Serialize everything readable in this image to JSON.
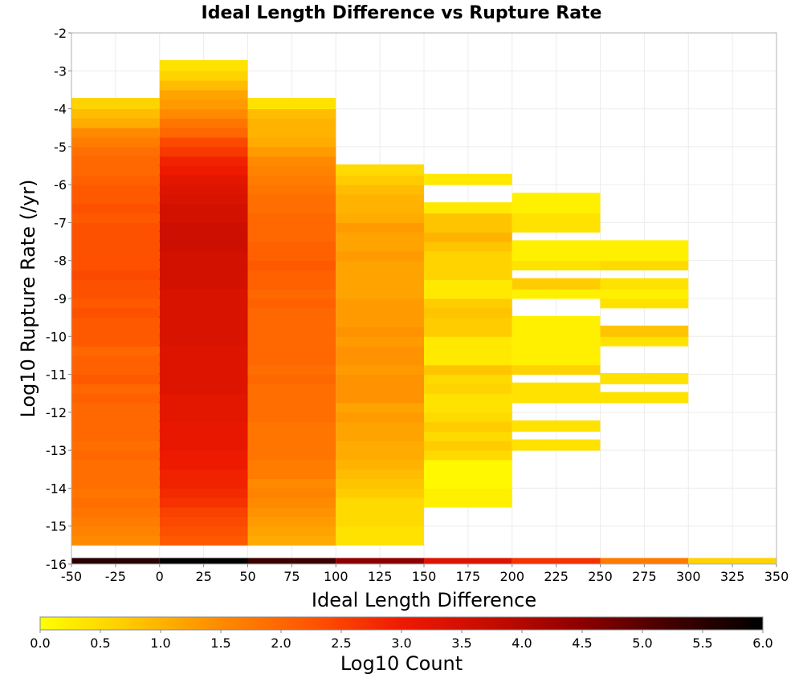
{
  "chart_data": {
    "type": "heatmap",
    "title": "Ideal Length Difference vs Rupture Rate",
    "xlabel": "Ideal Length Difference",
    "ylabel": "Log10 Rupture Rate (/yr)",
    "xlim": [
      -50,
      350
    ],
    "ylim": [
      -16,
      -2
    ],
    "xticks": [
      "-50",
      "-25",
      "0",
      "25",
      "50",
      "75",
      "100",
      "125",
      "150",
      "175",
      "200",
      "225",
      "250",
      "275",
      "300",
      "325",
      "350"
    ],
    "yticks": [
      "-2",
      "-3",
      "-4",
      "-5",
      "-6",
      "-7",
      "-8",
      "-9",
      "-10",
      "-11",
      "-12",
      "-13",
      "-14",
      "-15",
      "-16"
    ],
    "grid": true,
    "bin_width_x": 50,
    "bin_height_y": 0.285,
    "colorbar": {
      "label": "Log10 Count",
      "range": [
        0,
        6
      ],
      "ticks": [
        "0.0",
        "0.5",
        "1.0",
        "1.5",
        "2.0",
        "2.5",
        "3.0",
        "3.5",
        "4.0",
        "4.5",
        "5.0",
        "5.5",
        "6.0"
      ],
      "colormap": [
        "#ffff00",
        "#ffc800",
        "#ff8a00",
        "#ff5500",
        "#ee1a00",
        "#c40c00",
        "#8c0000",
        "#400000",
        "#000000"
      ]
    },
    "columns": [
      {
        "x_start": -50,
        "cells": [
          {
            "y": -15.8,
            "v": 5.5
          },
          {
            "y": -15.5,
            "v": 1.5
          },
          {
            "y": -15.25,
            "v": 1.6
          },
          {
            "y": -15.0,
            "v": 1.7
          },
          {
            "y": -14.75,
            "v": 1.8
          },
          {
            "y": -14.5,
            "v": 1.9
          },
          {
            "y": -14.25,
            "v": 1.8
          },
          {
            "y": -14.0,
            "v": 1.9
          },
          {
            "y": -13.75,
            "v": 1.9
          },
          {
            "y": -13.5,
            "v": 1.9
          },
          {
            "y": -13.25,
            "v": 2.0
          },
          {
            "y": -13.0,
            "v": 1.9
          },
          {
            "y": -12.75,
            "v": 2.0
          },
          {
            "y": -12.5,
            "v": 2.0
          },
          {
            "y": -12.25,
            "v": 2.0
          },
          {
            "y": -12.0,
            "v": 2.0
          },
          {
            "y": -11.75,
            "v": 2.1
          },
          {
            "y": -11.5,
            "v": 2.0
          },
          {
            "y": -11.25,
            "v": 2.2
          },
          {
            "y": -11.0,
            "v": 2.1
          },
          {
            "y": -10.75,
            "v": 2.1
          },
          {
            "y": -10.5,
            "v": 2.0
          },
          {
            "y": -10.25,
            "v": 2.2
          },
          {
            "y": -10.0,
            "v": 2.2
          },
          {
            "y": -9.75,
            "v": 2.2
          },
          {
            "y": -9.5,
            "v": 2.3
          },
          {
            "y": -9.25,
            "v": 2.2
          },
          {
            "y": -9.0,
            "v": 2.3
          },
          {
            "y": -8.75,
            "v": 2.3
          },
          {
            "y": -8.5,
            "v": 2.4
          },
          {
            "y": -8.25,
            "v": 2.3
          },
          {
            "y": -8.0,
            "v": 2.3
          },
          {
            "y": -7.75,
            "v": 2.3
          },
          {
            "y": -7.5,
            "v": 2.3
          },
          {
            "y": -7.25,
            "v": 2.3
          },
          {
            "y": -7.0,
            "v": 2.2
          },
          {
            "y": -6.75,
            "v": 2.3
          },
          {
            "y": -6.5,
            "v": 2.2
          },
          {
            "y": -6.25,
            "v": 2.2
          },
          {
            "y": -6.0,
            "v": 2.1
          },
          {
            "y": -5.75,
            "v": 2.0
          },
          {
            "y": -5.5,
            "v": 2.0
          },
          {
            "y": -5.25,
            "v": 1.9
          },
          {
            "y": -5.0,
            "v": 1.7
          },
          {
            "y": -4.75,
            "v": 1.5
          },
          {
            "y": -4.5,
            "v": 1.1
          },
          {
            "y": -4.25,
            "v": 0.9
          },
          {
            "y": -4.0,
            "v": 0.6
          }
        ]
      },
      {
        "x_start": 0,
        "cells": [
          {
            "y": -15.8,
            "v": 6.0
          },
          {
            "y": -15.5,
            "v": 2.2
          },
          {
            "y": -15.25,
            "v": 2.3
          },
          {
            "y": -15.0,
            "v": 2.4
          },
          {
            "y": -14.75,
            "v": 2.5
          },
          {
            "y": -14.5,
            "v": 2.7
          },
          {
            "y": -14.25,
            "v": 2.8
          },
          {
            "y": -14.0,
            "v": 2.9
          },
          {
            "y": -13.75,
            "v": 2.9
          },
          {
            "y": -13.5,
            "v": 3.0
          },
          {
            "y": -13.25,
            "v": 3.0
          },
          {
            "y": -13.0,
            "v": 3.1
          },
          {
            "y": -12.75,
            "v": 3.1
          },
          {
            "y": -12.5,
            "v": 3.1
          },
          {
            "y": -12.25,
            "v": 3.2
          },
          {
            "y": -12.0,
            "v": 3.2
          },
          {
            "y": -11.75,
            "v": 3.2
          },
          {
            "y": -11.5,
            "v": 3.3
          },
          {
            "y": -11.25,
            "v": 3.3
          },
          {
            "y": -11.0,
            "v": 3.3
          },
          {
            "y": -10.75,
            "v": 3.3
          },
          {
            "y": -10.5,
            "v": 3.3
          },
          {
            "y": -10.25,
            "v": 3.4
          },
          {
            "y": -10.0,
            "v": 3.4
          },
          {
            "y": -9.75,
            "v": 3.4
          },
          {
            "y": -9.5,
            "v": 3.4
          },
          {
            "y": -9.25,
            "v": 3.4
          },
          {
            "y": -9.0,
            "v": 3.4
          },
          {
            "y": -8.75,
            "v": 3.5
          },
          {
            "y": -8.5,
            "v": 3.5
          },
          {
            "y": -8.25,
            "v": 3.5
          },
          {
            "y": -8.0,
            "v": 3.5
          },
          {
            "y": -7.75,
            "v": 3.6
          },
          {
            "y": -7.5,
            "v": 3.6
          },
          {
            "y": -7.25,
            "v": 3.6
          },
          {
            "y": -7.0,
            "v": 3.5
          },
          {
            "y": -6.75,
            "v": 3.5
          },
          {
            "y": -6.5,
            "v": 3.4
          },
          {
            "y": -6.25,
            "v": 3.3
          },
          {
            "y": -6.0,
            "v": 3.2
          },
          {
            "y": -5.75,
            "v": 3.0
          },
          {
            "y": -5.5,
            "v": 2.9
          },
          {
            "y": -5.25,
            "v": 2.6
          },
          {
            "y": -5.0,
            "v": 2.4
          },
          {
            "y": -4.75,
            "v": 2.0
          },
          {
            "y": -4.5,
            "v": 1.8
          },
          {
            "y": -4.25,
            "v": 1.5
          },
          {
            "y": -4.0,
            "v": 1.3
          },
          {
            "y": -3.75,
            "v": 1.2
          },
          {
            "y": -3.5,
            "v": 0.9
          },
          {
            "y": -3.25,
            "v": 0.6
          },
          {
            "y": -3.0,
            "v": 0.4
          }
        ]
      },
      {
        "x_start": 50,
        "cells": [
          {
            "y": -15.8,
            "v": 5.3
          },
          {
            "y": -15.5,
            "v": 1.1
          },
          {
            "y": -15.25,
            "v": 1.2
          },
          {
            "y": -15.0,
            "v": 1.3
          },
          {
            "y": -14.75,
            "v": 1.4
          },
          {
            "y": -14.5,
            "v": 1.5
          },
          {
            "y": -14.25,
            "v": 1.6
          },
          {
            "y": -14.0,
            "v": 1.5
          },
          {
            "y": -13.75,
            "v": 1.7
          },
          {
            "y": -13.5,
            "v": 1.7
          },
          {
            "y": -13.25,
            "v": 1.8
          },
          {
            "y": -13.0,
            "v": 1.8
          },
          {
            "y": -12.75,
            "v": 1.8
          },
          {
            "y": -12.5,
            "v": 1.8
          },
          {
            "y": -12.25,
            "v": 1.9
          },
          {
            "y": -12.0,
            "v": 1.9
          },
          {
            "y": -11.75,
            "v": 1.9
          },
          {
            "y": -11.5,
            "v": 1.9
          },
          {
            "y": -11.25,
            "v": 2.0
          },
          {
            "y": -11.0,
            "v": 1.9
          },
          {
            "y": -10.75,
            "v": 2.0
          },
          {
            "y": -10.5,
            "v": 2.0
          },
          {
            "y": -10.25,
            "v": 2.0
          },
          {
            "y": -10.0,
            "v": 2.0
          },
          {
            "y": -9.75,
            "v": 2.0
          },
          {
            "y": -9.5,
            "v": 2.0
          },
          {
            "y": -9.25,
            "v": 2.1
          },
          {
            "y": -9.0,
            "v": 2.0
          },
          {
            "y": -8.75,
            "v": 2.1
          },
          {
            "y": -8.5,
            "v": 2.1
          },
          {
            "y": -8.25,
            "v": 2.2
          },
          {
            "y": -8.0,
            "v": 2.1
          },
          {
            "y": -7.75,
            "v": 2.1
          },
          {
            "y": -7.5,
            "v": 2.0
          },
          {
            "y": -7.25,
            "v": 2.0
          },
          {
            "y": -7.0,
            "v": 2.0
          },
          {
            "y": -6.75,
            "v": 1.9
          },
          {
            "y": -6.5,
            "v": 1.9
          },
          {
            "y": -6.25,
            "v": 1.8
          },
          {
            "y": -6.0,
            "v": 1.7
          },
          {
            "y": -5.75,
            "v": 1.6
          },
          {
            "y": -5.5,
            "v": 1.5
          },
          {
            "y": -5.25,
            "v": 1.3
          },
          {
            "y": -5.0,
            "v": 1.1
          },
          {
            "y": -4.75,
            "v": 1.0
          },
          {
            "y": -4.5,
            "v": 1.0
          },
          {
            "y": -4.25,
            "v": 0.9
          },
          {
            "y": -4.0,
            "v": 0.4
          }
        ]
      },
      {
        "x_start": 100,
        "cells": [
          {
            "y": -15.8,
            "v": 4.5
          },
          {
            "y": -15.5,
            "v": 0.4
          },
          {
            "y": -15.25,
            "v": 0.4
          },
          {
            "y": -15.0,
            "v": 0.5
          },
          {
            "y": -14.75,
            "v": 0.5
          },
          {
            "y": -14.5,
            "v": 0.5
          },
          {
            "y": -14.25,
            "v": 0.7
          },
          {
            "y": -14.0,
            "v": 0.8
          },
          {
            "y": -13.75,
            "v": 0.9
          },
          {
            "y": -13.5,
            "v": 1.0
          },
          {
            "y": -13.25,
            "v": 1.1
          },
          {
            "y": -13.0,
            "v": 1.1
          },
          {
            "y": -12.75,
            "v": 1.2
          },
          {
            "y": -12.5,
            "v": 1.2
          },
          {
            "y": -12.25,
            "v": 1.3
          },
          {
            "y": -12.0,
            "v": 1.2
          },
          {
            "y": -11.75,
            "v": 1.4
          },
          {
            "y": -11.5,
            "v": 1.4
          },
          {
            "y": -11.25,
            "v": 1.4
          },
          {
            "y": -11.0,
            "v": 1.3
          },
          {
            "y": -10.75,
            "v": 1.4
          },
          {
            "y": -10.5,
            "v": 1.4
          },
          {
            "y": -10.25,
            "v": 1.3
          },
          {
            "y": -10.0,
            "v": 1.4
          },
          {
            "y": -9.75,
            "v": 1.3
          },
          {
            "y": -9.5,
            "v": 1.3
          },
          {
            "y": -9.25,
            "v": 1.3
          },
          {
            "y": -9.0,
            "v": 1.2
          },
          {
            "y": -8.75,
            "v": 1.2
          },
          {
            "y": -8.5,
            "v": 1.2
          },
          {
            "y": -8.25,
            "v": 1.2
          },
          {
            "y": -8.0,
            "v": 1.3
          },
          {
            "y": -7.75,
            "v": 1.2
          },
          {
            "y": -7.5,
            "v": 1.2
          },
          {
            "y": -7.25,
            "v": 1.3
          },
          {
            "y": -7.0,
            "v": 1.1
          },
          {
            "y": -6.75,
            "v": 1.0
          },
          {
            "y": -6.5,
            "v": 1.0
          },
          {
            "y": -6.25,
            "v": 0.9
          },
          {
            "y": -6.0,
            "v": 0.7
          },
          {
            "y": -5.75,
            "v": 0.5
          }
        ]
      },
      {
        "x_start": 150,
        "cells": [
          {
            "y": -15.8,
            "v": 3.3
          },
          {
            "y": -14.5,
            "v": 0.2
          },
          {
            "y": -14.25,
            "v": 0.2
          },
          {
            "y": -14.0,
            "v": 0.1
          },
          {
            "y": -13.75,
            "v": 0.1
          },
          {
            "y": -13.5,
            "v": 0.1
          },
          {
            "y": -13.25,
            "v": 0.5
          },
          {
            "y": -13.0,
            "v": 0.7
          },
          {
            "y": -12.75,
            "v": 0.5
          },
          {
            "y": -12.5,
            "v": 0.7
          },
          {
            "y": -12.25,
            "v": 0.5
          },
          {
            "y": -12.0,
            "v": 0.4
          },
          {
            "y": -11.75,
            "v": 0.4
          },
          {
            "y": -11.5,
            "v": 0.6
          },
          {
            "y": -11.25,
            "v": 0.5
          },
          {
            "y": -11.0,
            "v": 0.8
          },
          {
            "y": -10.75,
            "v": 0.3
          },
          {
            "y": -10.5,
            "v": 0.3
          },
          {
            "y": -10.25,
            "v": 0.3
          },
          {
            "y": -10.0,
            "v": 0.7
          },
          {
            "y": -9.75,
            "v": 0.7
          },
          {
            "y": -9.5,
            "v": 0.8
          },
          {
            "y": -9.25,
            "v": 0.7
          },
          {
            "y": -9.0,
            "v": 0.3
          },
          {
            "y": -8.75,
            "v": 0.3
          },
          {
            "y": -8.5,
            "v": 0.6
          },
          {
            "y": -8.25,
            "v": 0.6
          },
          {
            "y": -8.0,
            "v": 0.6
          },
          {
            "y": -7.75,
            "v": 0.8
          },
          {
            "y": -7.5,
            "v": 1.0
          },
          {
            "y": -7.25,
            "v": 0.8
          },
          {
            "y": -7.0,
            "v": 0.8
          },
          {
            "y": -6.75,
            "v": 0.3
          },
          {
            "y": -6.0,
            "v": 0.3
          }
        ]
      },
      {
        "x_start": 200,
        "cells": [
          {
            "y": -15.8,
            "v": 2.7
          },
          {
            "y": -13.0,
            "v": 0.4
          },
          {
            "y": -12.5,
            "v": 0.4
          },
          {
            "y": -11.75,
            "v": 0.4
          },
          {
            "y": -11.5,
            "v": 0.4
          },
          {
            "y": -11.0,
            "v": 0.6
          },
          {
            "y": -10.75,
            "v": 0.2
          },
          {
            "y": -10.5,
            "v": 0.2
          },
          {
            "y": -10.25,
            "v": 0.2
          },
          {
            "y": -10.0,
            "v": 0.2
          },
          {
            "y": -9.75,
            "v": 0.2
          },
          {
            "y": -9.0,
            "v": 0.2
          },
          {
            "y": -8.75,
            "v": 0.7
          },
          {
            "y": -8.25,
            "v": 0.4
          },
          {
            "y": -8.0,
            "v": 0.2
          },
          {
            "y": -7.75,
            "v": 0.2
          },
          {
            "y": -7.25,
            "v": 0.4
          },
          {
            "y": -7.0,
            "v": 0.4
          },
          {
            "y": -6.75,
            "v": 0.2
          },
          {
            "y": -6.5,
            "v": 0.2
          }
        ]
      },
      {
        "x_start": 250,
        "cells": [
          {
            "y": -15.8,
            "v": 1.7
          },
          {
            "y": -11.75,
            "v": 0.4
          },
          {
            "y": -11.25,
            "v": 0.4
          },
          {
            "y": -10.25,
            "v": 0.4
          },
          {
            "y": -10.0,
            "v": 0.8
          },
          {
            "y": -9.25,
            "v": 0.4
          },
          {
            "y": -9.0,
            "v": 0.2
          },
          {
            "y": -8.75,
            "v": 0.4
          },
          {
            "y": -8.25,
            "v": 0.5
          },
          {
            "y": -8.0,
            "v": 0.2
          },
          {
            "y": -7.75,
            "v": 0.2
          }
        ]
      },
      {
        "x_start": 300,
        "cells": [
          {
            "y": -15.8,
            "v": 0.6
          }
        ]
      }
    ]
  }
}
